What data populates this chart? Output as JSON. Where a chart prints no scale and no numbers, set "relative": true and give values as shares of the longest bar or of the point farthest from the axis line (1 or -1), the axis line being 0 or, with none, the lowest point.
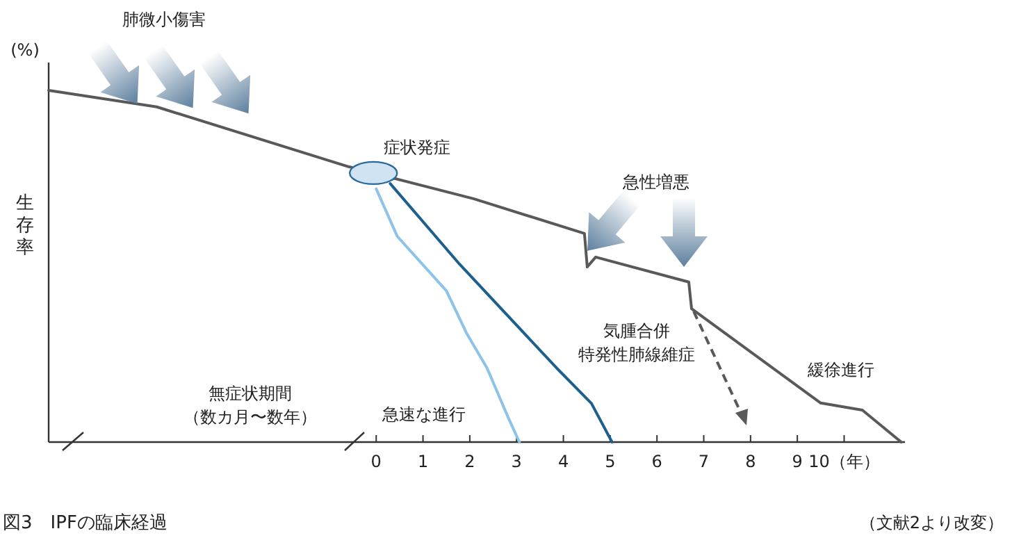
{
  "chart_data": {
    "type": "line",
    "title": "図3　IPFの臨床経過",
    "ylabel": "生存率",
    "relative": true,
    "xlim": [
      -7,
      11.3
    ],
    "xticks": [
      0,
      1,
      2,
      3,
      4,
      5,
      6,
      7,
      8,
      9,
      {
        "value": 10,
        "label": "10（年）"
      }
    ],
    "annotations": [
      "肺微小傷害",
      "(%)",
      "症状発症",
      "急性増悪",
      "気腫合併",
      "特発性肺線維症",
      "緩徐進行",
      "急速な進行",
      "無症状期間",
      "（数カ月〜数年）",
      "（文献2より改変）"
    ],
    "series": [
      {
        "color": "#595959",
        "x": [
          -7,
          -4.69,
          -0.59,
          2.08,
          4.45,
          4.51,
          4.69,
          6.68,
          6.74,
          9.5,
          10.39,
          11.22
        ],
        "values": [
          1,
          0.953,
          0.783,
          0.692,
          0.593,
          0.498,
          0.526,
          0.455,
          0.379,
          0.111,
          0.091,
          0
        ]
      },
      {
        "color": "#8cc3e8",
        "x": [
          0,
          0.45,
          1.5,
          1.93,
          2.37,
          2.82,
          3.06
        ],
        "values": [
          0.72,
          0.585,
          0.43,
          0.31,
          0.21,
          0.07,
          0
        ]
      },
      {
        "color": "#1d5f8f",
        "x": [
          0.3,
          1.78,
          3.86,
          4.6,
          5.04
        ],
        "values": [
          0.735,
          0.506,
          0.21,
          0.11,
          0
        ]
      }
    ]
  }
}
